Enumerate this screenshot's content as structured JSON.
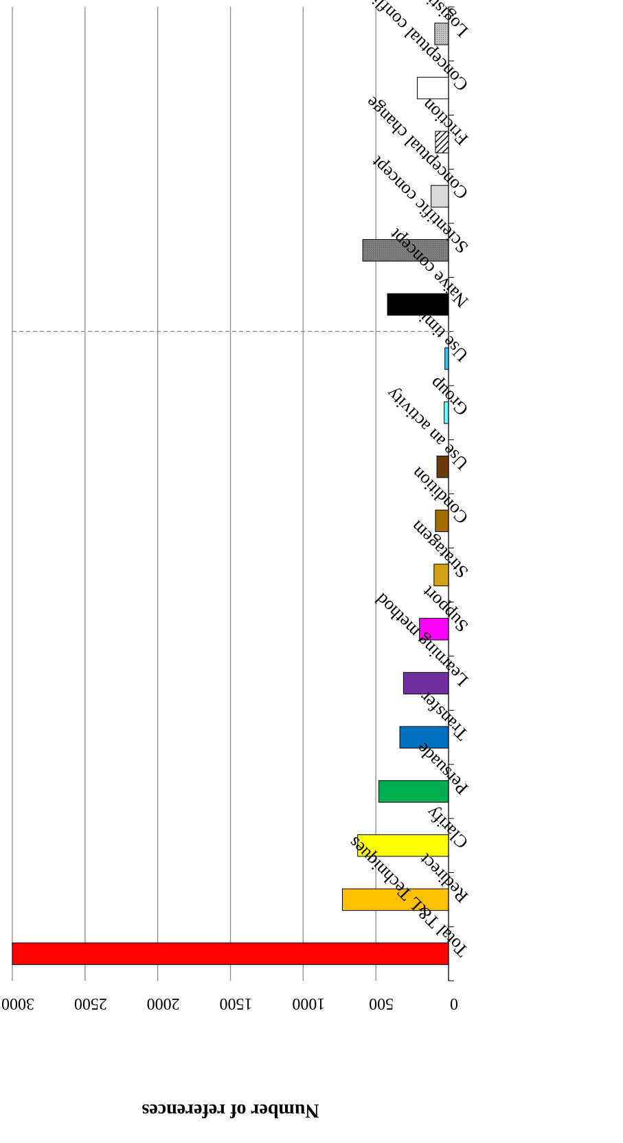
{
  "chart_data": {
    "type": "bar",
    "orientation": "horizontal",
    "ylabel": "Number of references",
    "xlabel": "",
    "ylim": [
      0,
      3000
    ],
    "yticks": [
      "0",
      "500",
      "1000",
      "1500",
      "2000",
      "2500",
      "3000"
    ],
    "grid": "major gridlines on value axis",
    "legend": "none",
    "categories": [
      "Total T&L Techniques",
      "Redirect",
      "Clarify",
      "Persuade",
      "Transfer",
      "Learning method",
      "Support",
      "Stratagem",
      "Condition",
      "Use an activity",
      "Group",
      "Use timing",
      "Naïve concept",
      "Scientific concept",
      "Conceptual change",
      "Friction",
      "Conceptual conflict",
      "Logistics"
    ],
    "values": [
      3000,
      730,
      625,
      480,
      335,
      310,
      200,
      100,
      90,
      80,
      30,
      25,
      420,
      590,
      120,
      90,
      215,
      95
    ],
    "colors": [
      "#ff0000",
      "#ffc000",
      "#ffff00",
      "#00b050",
      "#0070c0",
      "#7030a0",
      "#ff00ff",
      "#d4a017",
      "#a66c00",
      "#6b3a0c",
      "#66ffff",
      "#33ccff",
      "#000000",
      "#808080",
      "#d9d9d9",
      "#pattern-diagonal",
      "#ffffff",
      "#bfbfbf"
    ],
    "separator_after_category": "Use timing"
  }
}
